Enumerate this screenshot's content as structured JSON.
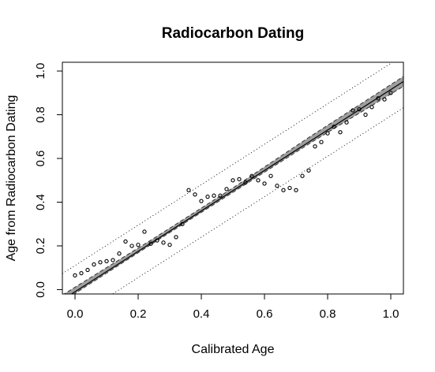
{
  "chart_data": {
    "type": "scatter",
    "title": "Radiocarbon Dating",
    "xlabel": "Calibrated Age",
    "ylabel": "Age from Radiocarbon Dating",
    "xlim": [
      -0.04,
      1.04
    ],
    "ylim": [
      -0.02,
      1.04
    ],
    "x_ticks": [
      "0.0",
      "0.2",
      "0.4",
      "0.6",
      "0.8",
      "1.0"
    ],
    "y_ticks": [
      "0.0",
      "0.2",
      "0.4",
      "0.6",
      "0.8",
      "1.0"
    ],
    "grid": false,
    "legend": "none",
    "points": {
      "x": [
        0.0,
        0.02,
        0.04,
        0.06,
        0.08,
        0.1,
        0.12,
        0.14,
        0.16,
        0.18,
        0.2,
        0.22,
        0.24,
        0.26,
        0.28,
        0.3,
        0.32,
        0.34,
        0.36,
        0.38,
        0.4,
        0.42,
        0.44,
        0.46,
        0.48,
        0.5,
        0.52,
        0.54,
        0.56,
        0.58,
        0.6,
        0.62,
        0.64,
        0.66,
        0.68,
        0.7,
        0.72,
        0.74,
        0.76,
        0.78,
        0.8,
        0.82,
        0.84,
        0.86,
        0.88,
        0.9,
        0.92,
        0.94,
        0.96,
        0.98,
        1.0
      ],
      "y": [
        0.065,
        0.075,
        0.09,
        0.115,
        0.125,
        0.13,
        0.135,
        0.165,
        0.22,
        0.2,
        0.205,
        0.265,
        0.21,
        0.225,
        0.215,
        0.205,
        0.24,
        0.3,
        0.455,
        0.435,
        0.405,
        0.425,
        0.43,
        0.43,
        0.46,
        0.5,
        0.505,
        0.49,
        0.52,
        0.5,
        0.485,
        0.52,
        0.475,
        0.455,
        0.465,
        0.455,
        0.52,
        0.545,
        0.655,
        0.675,
        0.715,
        0.745,
        0.72,
        0.765,
        0.82,
        0.825,
        0.8,
        0.835,
        0.875,
        0.87,
        0.9
      ]
    },
    "fit_line": {
      "intercept": -0.01,
      "slope": 0.925
    },
    "confidence_band": [
      {
        "x": -0.04,
        "lower": -0.055,
        "upper": -0.025
      },
      {
        "x": 0.25,
        "lower": 0.215,
        "upper": 0.235
      },
      {
        "x": 0.5,
        "lower": 0.445,
        "upper": 0.465
      },
      {
        "x": 0.75,
        "lower": 0.675,
        "upper": 0.705
      },
      {
        "x": 1.04,
        "lower": 0.93,
        "upper": 0.975
      }
    ],
    "prediction_interval": {
      "half_width": 0.12
    },
    "colors": {
      "band": "#9e9e9e",
      "line": "#000000",
      "points": "#000000"
    }
  }
}
